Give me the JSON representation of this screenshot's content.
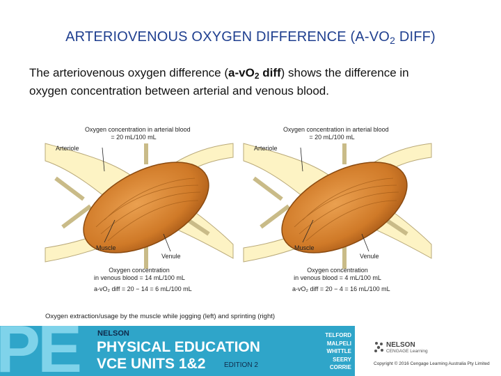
{
  "slide": {
    "title_main": "ARTERIOVENOUS OXYGEN DIFFERENCE (A-VO",
    "title_sub": "2",
    "title_end": " DIFF)",
    "body_part1": "The arteriovenous oxygen difference (",
    "body_bold": "a-vO",
    "body_bold_sub": "2",
    "body_bold_end": " diff",
    "body_part2": ") shows the difference in oxygen concentration between arterial and venous blood."
  },
  "figure": {
    "left": {
      "arterial_line1": "Oxygen concentration in arterial blood",
      "arterial_line2": "= 20 mL/100 mL",
      "arteriole": "Arteriole",
      "muscle": "Muscle",
      "venule": "Venule",
      "venous_line1": "Oxygen concentration",
      "venous_line2": "in venous blood = 14 mL/100 mL",
      "diff": "a-vO₂ diff = 20 − 14 = 6 mL/100 mL"
    },
    "right": {
      "arterial_line1": "Oxygen concentration in arterial blood",
      "arterial_line2": "= 20 mL/100 mL",
      "arteriole": "Arteriole",
      "muscle": "Muscle",
      "venule": "Venule",
      "venous_line1": "Oxygen concentration",
      "venous_line2": "in venous blood = 4 mL/100 mL",
      "diff": "a-vO₂ diff = 20 − 4 = 16 mL/100 mL"
    },
    "caption": "Oxygen extraction/usage by the muscle while jogging (left) and sprinting (right)"
  },
  "banner": {
    "pe_letters": "PE",
    "publisher_top": "NELSON",
    "title_line1": "PHYSICAL EDUCATION",
    "title_line2": "VCE UNITS 1&2",
    "edition": "EDITION 2",
    "authors": [
      "TELFORD",
      "MALPELI",
      "WHITTLE",
      "SEERY",
      "CORRIE"
    ],
    "logo_name": "NELSON",
    "logo_sub": "CENGAGE Learning",
    "copyright": "Copyright © 2016 Cengage Learning Australia Pty Limited"
  },
  "colors": {
    "title": "#1f3f8f",
    "muscle": "#d9822b",
    "vessel": "#fdf3c4",
    "banner": "#2fa5c9"
  }
}
